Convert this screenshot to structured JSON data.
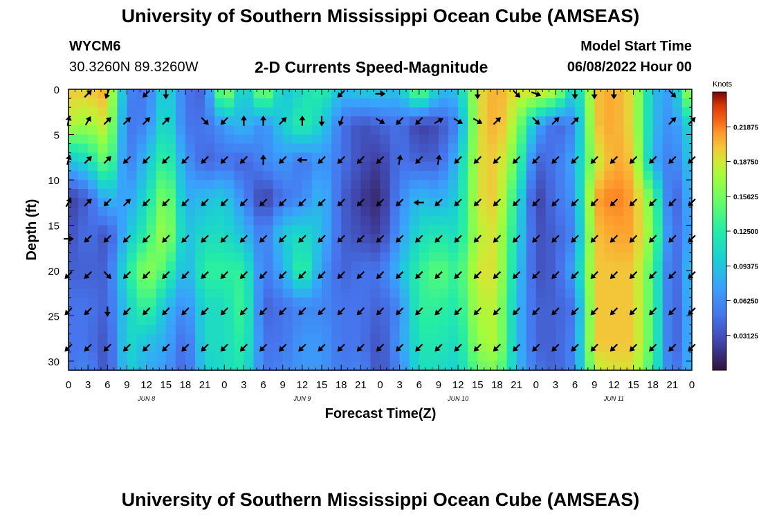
{
  "header": {
    "title": "University of Southern Mississippi Ocean Cube (AMSEAS)",
    "station_id": "WYCM6",
    "station_coords": "30.3260N  89.3260W",
    "subtitle": "2-D Currents Speed-Magnitude",
    "model_start_label": "Model Start Time",
    "model_start_value": "06/08/2022 Hour 00"
  },
  "footer": {
    "title": "University of Southern Mississippi Ocean Cube (AMSEAS)"
  },
  "chart_data": {
    "type": "heatmap",
    "title": "2-D Currents Speed-Magnitude",
    "xlabel": "Forecast Time(Z)",
    "ylabel": "Depth (ft)",
    "xlim": [
      0,
      96
    ],
    "ylim": [
      31,
      0
    ],
    "x_ticks": [
      0,
      3,
      6,
      9,
      12,
      15,
      18,
      21,
      24,
      27,
      30,
      33,
      36,
      39,
      42,
      45,
      48,
      51,
      54,
      57,
      60,
      63,
      66,
      69,
      72,
      75,
      78,
      81,
      84,
      87,
      90,
      93,
      96
    ],
    "x_tick_labels": [
      "0",
      "3",
      "6",
      "9",
      "12",
      "15",
      "18",
      "21",
      "0",
      "3",
      "6",
      "9",
      "12",
      "15",
      "18",
      "21",
      "0",
      "3",
      "6",
      "9",
      "12",
      "15",
      "18",
      "21",
      "0",
      "3",
      "6",
      "9",
      "12",
      "15",
      "18",
      "21",
      "0"
    ],
    "day_labels": [
      {
        "x": 12,
        "text": "JUN 8"
      },
      {
        "x": 36,
        "text": "JUN 9"
      },
      {
        "x": 60,
        "text": "JUN 10"
      },
      {
        "x": 84,
        "text": "JUN 11"
      }
    ],
    "y_ticks": [
      0,
      5,
      10,
      15,
      20,
      25,
      30
    ],
    "colorbar": {
      "unit": "Knots",
      "range": [
        0,
        0.25
      ],
      "ticks": [
        0.03125,
        0.0625,
        0.09375,
        0.125,
        0.15625,
        0.1875,
        0.21875
      ],
      "tick_labels": [
        "0.03125",
        "0.06250",
        "0.09375",
        "0.12500",
        "0.15625",
        "0.18750",
        "0.21875"
      ]
    },
    "times": [
      0,
      3,
      6,
      9,
      12,
      15,
      18,
      21,
      24,
      27,
      30,
      33,
      36,
      39,
      42,
      45,
      48,
      51,
      54,
      57,
      60,
      63,
      66,
      69,
      72,
      75,
      78,
      81,
      84,
      87,
      90,
      93,
      96
    ],
    "depths": [
      0,
      4,
      8,
      12,
      16,
      20,
      24,
      28,
      31
    ],
    "speed_knots": [
      [
        0.2,
        0.2,
        0.21,
        0.06,
        0.05,
        0.11,
        0.05,
        0.04,
        0.19,
        0.08,
        0.18,
        0.09,
        0.11,
        0.13,
        0.09,
        0.1,
        0.1,
        0.09,
        0.17,
        0.09,
        0.09,
        0.19,
        0.21,
        0.19,
        0.2,
        0.19,
        0.09,
        0.2,
        0.21,
        0.19,
        0.09,
        0.07,
        0.2
      ],
      [
        0.18,
        0.17,
        0.19,
        0.05,
        0.06,
        0.12,
        0.05,
        0.05,
        0.07,
        0.09,
        0.06,
        0.1,
        0.13,
        0.1,
        0.05,
        0.03,
        0.04,
        0.05,
        0.02,
        0.03,
        0.06,
        0.19,
        0.21,
        0.17,
        0.08,
        0.04,
        0.06,
        0.2,
        0.21,
        0.19,
        0.09,
        0.06,
        0.11
      ],
      [
        0.09,
        0.11,
        0.16,
        0.05,
        0.09,
        0.14,
        0.07,
        0.04,
        0.05,
        0.04,
        0.06,
        0.07,
        0.05,
        0.07,
        0.05,
        0.03,
        0.02,
        0.05,
        0.04,
        0.04,
        0.09,
        0.19,
        0.2,
        0.15,
        0.04,
        0.05,
        0.08,
        0.18,
        0.21,
        0.2,
        0.08,
        0.05,
        0.1
      ],
      [
        0.02,
        0.04,
        0.09,
        0.07,
        0.11,
        0.17,
        0.08,
        0.09,
        0.1,
        0.06,
        0.02,
        0.05,
        0.06,
        0.09,
        0.04,
        0.02,
        0.01,
        0.06,
        0.09,
        0.08,
        0.1,
        0.19,
        0.2,
        0.12,
        0.02,
        0.05,
        0.07,
        0.21,
        0.22,
        0.21,
        0.15,
        0.03,
        0.09
      ],
      [
        0.03,
        0.05,
        0.03,
        0.09,
        0.13,
        0.18,
        0.09,
        0.11,
        0.11,
        0.09,
        0.05,
        0.1,
        0.11,
        0.09,
        0.04,
        0.03,
        0.02,
        0.07,
        0.11,
        0.12,
        0.11,
        0.18,
        0.19,
        0.11,
        0.03,
        0.04,
        0.06,
        0.2,
        0.21,
        0.21,
        0.16,
        0.04,
        0.08
      ],
      [
        0.04,
        0.04,
        0.04,
        0.12,
        0.17,
        0.14,
        0.08,
        0.13,
        0.13,
        0.13,
        0.05,
        0.08,
        0.14,
        0.07,
        0.04,
        0.05,
        0.05,
        0.09,
        0.13,
        0.15,
        0.13,
        0.19,
        0.19,
        0.1,
        0.03,
        0.04,
        0.08,
        0.2,
        0.2,
        0.2,
        0.14,
        0.03,
        0.1
      ],
      [
        0.05,
        0.05,
        0.04,
        0.1,
        0.14,
        0.09,
        0.06,
        0.11,
        0.11,
        0.14,
        0.04,
        0.05,
        0.06,
        0.06,
        0.05,
        0.05,
        0.04,
        0.06,
        0.13,
        0.13,
        0.12,
        0.18,
        0.18,
        0.09,
        0.04,
        0.04,
        0.05,
        0.2,
        0.2,
        0.2,
        0.14,
        0.03,
        0.09
      ],
      [
        0.05,
        0.05,
        0.03,
        0.11,
        0.09,
        0.08,
        0.04,
        0.11,
        0.11,
        0.13,
        0.05,
        0.05,
        0.07,
        0.07,
        0.05,
        0.05,
        0.03,
        0.07,
        0.12,
        0.12,
        0.11,
        0.17,
        0.18,
        0.09,
        0.04,
        0.04,
        0.06,
        0.2,
        0.2,
        0.2,
        0.14,
        0.03,
        0.09
      ],
      [
        0.05,
        0.06,
        0.03,
        0.1,
        0.08,
        0.07,
        0.04,
        0.1,
        0.11,
        0.12,
        0.05,
        0.06,
        0.07,
        0.07,
        0.05,
        0.06,
        0.03,
        0.06,
        0.11,
        0.11,
        0.1,
        0.15,
        0.16,
        0.09,
        0.05,
        0.04,
        0.06,
        0.18,
        0.19,
        0.19,
        0.13,
        0.04,
        0.09
      ]
    ],
    "vector_depths": [
      0.5,
      3.5,
      7.8,
      12.5,
      16.5,
      20.5,
      24.5,
      28.5
    ],
    "vector_cols": [
      0,
      3,
      6,
      9,
      12,
      15,
      18,
      21,
      24,
      27,
      30,
      33,
      36,
      39,
      42,
      45,
      48,
      51,
      54,
      57,
      60,
      63,
      66,
      69,
      72,
      75,
      78,
      81,
      84,
      87,
      90,
      93,
      96
    ],
    "vector_dirs_deg": [
      [
        null,
        45,
        200,
        null,
        225,
        180,
        null,
        null,
        null,
        null,
        null,
        null,
        null,
        null,
        225,
        null,
        90,
        null,
        null,
        null,
        null,
        180,
        null,
        135,
        110,
        null,
        180,
        180,
        180,
        null,
        null,
        135,
        null
      ],
      [
        10,
        30,
        45,
        45,
        45,
        45,
        null,
        135,
        225,
        0,
        0,
        45,
        0,
        180,
        200,
        null,
        120,
        225,
        225,
        60,
        120,
        120,
        45,
        null,
        135,
        45,
        45,
        null,
        null,
        null,
        null,
        45,
        45
      ],
      [
        15,
        45,
        45,
        225,
        225,
        225,
        225,
        225,
        225,
        225,
        0,
        225,
        270,
        225,
        225,
        225,
        225,
        10,
        225,
        10,
        225,
        225,
        225,
        225,
        225,
        225,
        225,
        225,
        225,
        225,
        225,
        225,
        225
      ],
      [
        30,
        45,
        225,
        45,
        225,
        225,
        225,
        225,
        225,
        225,
        225,
        225,
        225,
        225,
        225,
        225,
        225,
        225,
        270,
        225,
        225,
        225,
        225,
        225,
        225,
        225,
        225,
        225,
        225,
        225,
        225,
        225,
        225
      ],
      [
        90,
        225,
        225,
        225,
        225,
        225,
        225,
        225,
        225,
        225,
        225,
        225,
        225,
        225,
        225,
        225,
        225,
        225,
        225,
        225,
        225,
        225,
        225,
        225,
        225,
        225,
        225,
        225,
        225,
        225,
        225,
        225,
        225
      ],
      [
        225,
        225,
        135,
        225,
        225,
        225,
        225,
        225,
        225,
        225,
        225,
        225,
        225,
        225,
        225,
        225,
        225,
        225,
        225,
        225,
        225,
        225,
        225,
        225,
        225,
        225,
        225,
        225,
        225,
        225,
        225,
        225,
        225
      ],
      [
        225,
        225,
        180,
        225,
        225,
        225,
        225,
        225,
        225,
        225,
        225,
        225,
        225,
        225,
        225,
        225,
        225,
        225,
        225,
        225,
        225,
        225,
        225,
        225,
        225,
        225,
        225,
        225,
        225,
        225,
        225,
        225,
        225
      ],
      [
        225,
        225,
        225,
        225,
        225,
        225,
        225,
        225,
        225,
        225,
        225,
        225,
        225,
        225,
        225,
        225,
        225,
        225,
        225,
        225,
        225,
        225,
        225,
        225,
        225,
        225,
        225,
        225,
        225,
        225,
        225,
        225,
        225
      ]
    ]
  }
}
